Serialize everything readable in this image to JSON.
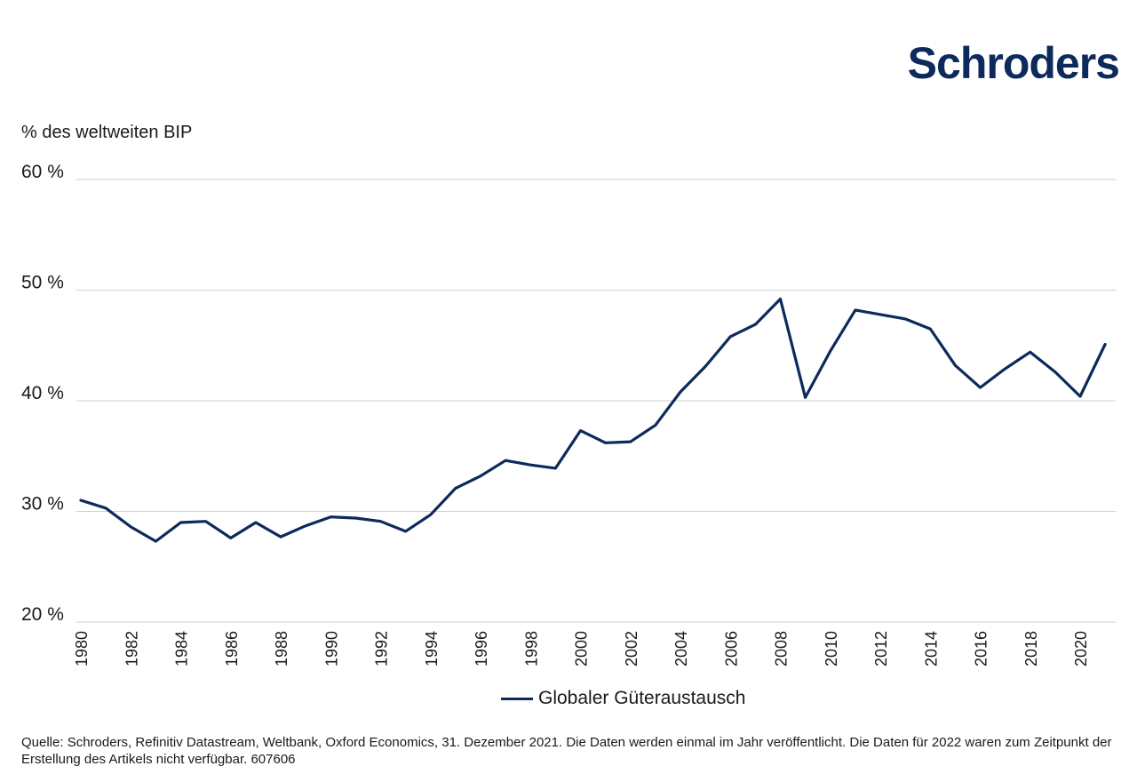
{
  "brand": {
    "logo_text": "Schroders",
    "color": "#0c2a5b"
  },
  "chart_data": {
    "type": "line",
    "title": "",
    "ylabel": "% des weltweiten BIP",
    "xlabel": "",
    "ylim": [
      20,
      60
    ],
    "yticks": [
      20,
      30,
      40,
      50,
      60
    ],
    "ytick_labels": [
      "20 %",
      "30 %",
      "40 %",
      "50 %",
      "60 %"
    ],
    "xticks": [
      1980,
      1982,
      1984,
      1986,
      1988,
      1990,
      1992,
      1994,
      1996,
      1998,
      2000,
      2002,
      2004,
      2006,
      2008,
      2010,
      2012,
      2014,
      2016,
      2018,
      2020
    ],
    "grid": "horizontal",
    "legend_placement": "bottom-center",
    "series": [
      {
        "name": "Globaler Güteraustausch",
        "color": "#0c2a5b",
        "x": [
          1980,
          1981,
          1982,
          1983,
          1984,
          1985,
          1986,
          1987,
          1988,
          1989,
          1990,
          1991,
          1992,
          1993,
          1994,
          1995,
          1996,
          1997,
          1998,
          1999,
          2000,
          2001,
          2002,
          2003,
          2004,
          2005,
          2006,
          2007,
          2008,
          2009,
          2010,
          2011,
          2012,
          2013,
          2014,
          2015,
          2016,
          2017,
          2018,
          2019,
          2020,
          2021
        ],
        "values": [
          31.0,
          30.3,
          28.6,
          27.3,
          29.0,
          29.1,
          27.6,
          29.0,
          27.7,
          28.7,
          29.5,
          29.4,
          29.1,
          28.2,
          29.7,
          32.1,
          33.2,
          34.6,
          34.2,
          33.9,
          37.3,
          36.2,
          36.3,
          37.8,
          40.8,
          43.1,
          45.8,
          46.9,
          49.2,
          40.3,
          44.5,
          48.2,
          47.8,
          47.4,
          46.5,
          43.2,
          41.2,
          42.9,
          44.4,
          42.6,
          40.4,
          45.1
        ]
      }
    ]
  },
  "source_text": "Quelle: Schroders, Refinitiv Datastream, Weltbank, Oxford Economics, 31. Dezember 2021. Die Daten werden einmal im Jahr veröffentlicht. Die Daten für 2022 waren zum Zeitpunkt der Erstellung des Artikels nicht verfügbar. 607606"
}
